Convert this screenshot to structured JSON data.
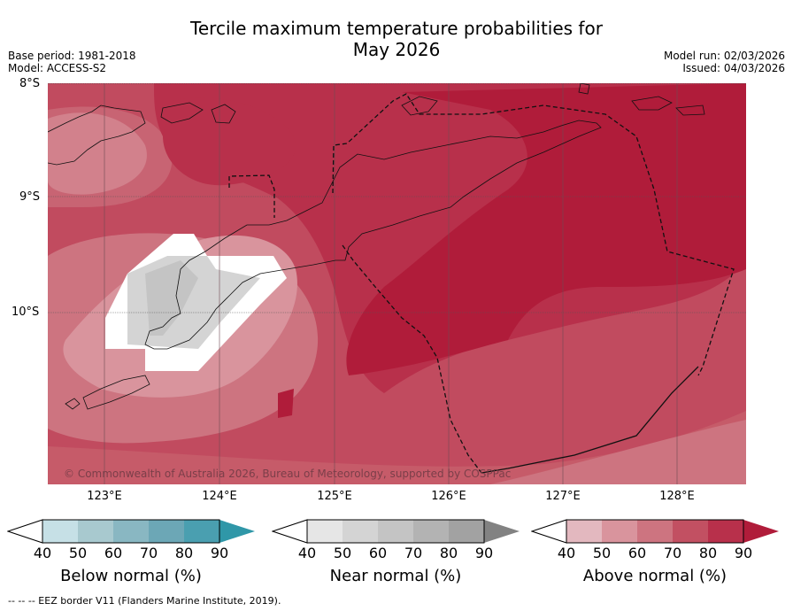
{
  "title_line1": "Tercile maximum temperature probabilities for",
  "title_line2": "May 2026",
  "base_period": "Base period: 1981-2018",
  "model": "Model: ACCESS-S2",
  "model_run": "Model run: 02/03/2026",
  "issued": "Issued: 04/03/2026",
  "lat_labels": [
    "8°S",
    "9°S",
    "10°S"
  ],
  "lon_labels": [
    "123°E",
    "124°E",
    "125°E",
    "126°E",
    "127°E",
    "128°E"
  ],
  "copyright": "© Commonwealth of Australia 2026, Bureau of Meteorology, supported by COSPPac",
  "colorbars": [
    {
      "label": "Below normal (%)",
      "ticks": [
        "40",
        "50",
        "60",
        "70",
        "80",
        "90"
      ],
      "colors": [
        "#c6e0e6",
        "#a8c9cf",
        "#89b7c2",
        "#6ca7b6",
        "#4a9fb0",
        "#2f97a8"
      ]
    },
    {
      "label": "Near normal (%)",
      "ticks": [
        "40",
        "50",
        "60",
        "70",
        "80",
        "90"
      ],
      "colors": [
        "#e6e6e6",
        "#d4d4d4",
        "#c4c4c4",
        "#b3b3b3",
        "#a2a2a2",
        "#828282"
      ]
    },
    {
      "label": "Above normal (%)",
      "ticks": [
        "40",
        "50",
        "60",
        "70",
        "80",
        "90"
      ],
      "colors": [
        "#e3b8bf",
        "#d9949d",
        "#cd7480",
        "#c25062",
        "#b8304b",
        "#b01c3a"
      ]
    }
  ],
  "footer": "--  --  -- EEZ border V11 (Flanders Marine Institute, 2019)."
}
